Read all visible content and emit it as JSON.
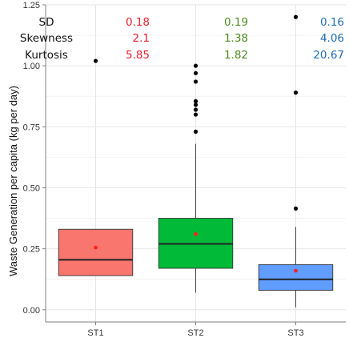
{
  "chart_data": {
    "type": "boxplot",
    "title": "",
    "xlabel": "",
    "ylabel": "Waste Generation per capita (kg per day)",
    "ylim": [
      -0.05,
      1.25
    ],
    "y_ticks": [
      "0.00",
      "0.25",
      "0.50",
      "0.75",
      "1.00",
      "1.25"
    ],
    "grid": true,
    "legend": "none",
    "categories": [
      "ST1",
      "ST2",
      "ST3"
    ],
    "stats_labels": [
      "SD",
      "Skewness",
      "Kurtosis"
    ],
    "series": [
      {
        "category": "ST1",
        "color": "#F8766D",
        "stat_color": "#e4202e",
        "stats": [
          "0.18",
          "2.1",
          "5.85"
        ],
        "whisker_low": 0.14,
        "q1": 0.14,
        "median": 0.205,
        "q3": 0.33,
        "whisker_high": 0.33,
        "mean": 0.255,
        "outliers": [
          1.02
        ]
      },
      {
        "category": "ST2",
        "color": "#00BA38",
        "stat_color": "#4a8a1f",
        "stats": [
          "0.19",
          "1.38",
          "1.82"
        ],
        "whisker_low": 0.07,
        "q1": 0.17,
        "median": 0.27,
        "q3": 0.375,
        "whisker_high": 0.68,
        "mean": 0.31,
        "outliers": [
          0.73,
          0.8,
          0.82,
          0.84,
          0.855,
          0.935,
          0.97,
          1.0
        ]
      },
      {
        "category": "ST3",
        "color": "#619CFF",
        "stat_color": "#1f6db0",
        "stats": [
          "0.16",
          "4.06",
          "20.67"
        ],
        "whisker_low": 0.01,
        "q1": 0.08,
        "median": 0.125,
        "q3": 0.185,
        "whisker_high": 0.34,
        "mean": 0.16,
        "outliers": [
          0.415,
          0.89,
          1.2
        ]
      }
    ]
  }
}
